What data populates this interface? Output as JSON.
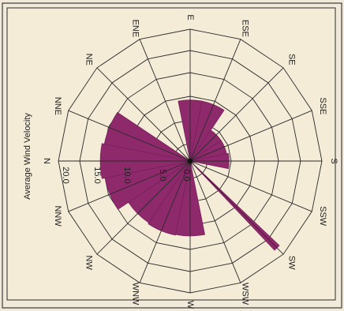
{
  "chart_data": {
    "type": "polar-bar",
    "title": "",
    "radial_label": "Average Wind Velocity",
    "radial_ticks": [
      "0.0",
      "5.0",
      "10.0",
      "15.0",
      "20.0"
    ],
    "rmax": 22,
    "directions": [
      "E",
      "ESE",
      "SE",
      "SSE",
      "S",
      "SSW",
      "SW",
      "WSW",
      "W",
      "WNW",
      "NW",
      "NNW",
      "N",
      "NNE",
      "NE",
      "ENE"
    ],
    "values": [
      10.2,
      10.2,
      6.2,
      6.2,
      6.5,
      0.7,
      20.5,
      0.7,
      12.5,
      12.6,
      12.4,
      14.5,
      15.0,
      14.6,
      0.0,
      0.0
    ],
    "colors": {
      "petal": "#8e2a6c",
      "background": "#f5ecd8"
    }
  }
}
